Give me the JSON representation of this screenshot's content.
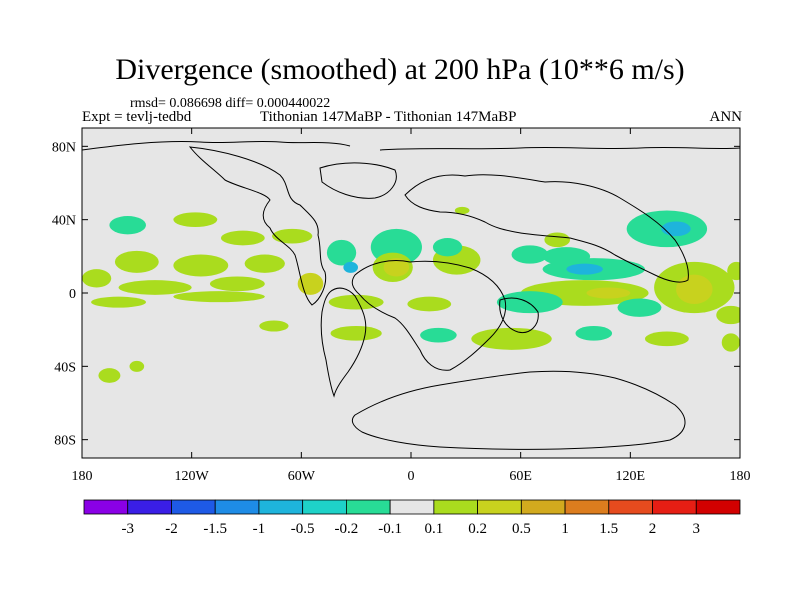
{
  "title": "Divergence (smoothed) at 200 hPa (10**6 m/s)",
  "stats": "rmsd= 0.086698 diff= 0.000440022",
  "expt": "Expt = tevlj-tedbd",
  "period": "Tithonian 147MaBP - Tithonian 147MaBP",
  "season": "ANN",
  "axes": {
    "lon_ticks": [
      "180",
      "120W",
      "60W",
      "0",
      "60E",
      "120E",
      "180"
    ],
    "lat_ticks": [
      "80N",
      "40N",
      "0",
      "40S",
      "80S"
    ],
    "lon_values": [
      -180,
      -120,
      -60,
      0,
      60,
      120,
      180
    ],
    "lat_values": [
      80,
      40,
      0,
      -40,
      -80
    ]
  },
  "colorbar": {
    "labels": [
      "-3",
      "-2",
      "-1.5",
      "-1",
      "-0.5",
      "-0.2",
      "-0.1",
      "0.1",
      "0.2",
      "0.5",
      "1",
      "1.5",
      "2",
      "3"
    ],
    "colors": [
      "#8a00e6",
      "#3a1ee6",
      "#1e5ae6",
      "#1e8ce6",
      "#1eb4dc",
      "#1ed2c8",
      "#28dc96",
      "#e6e6e6",
      "#aadc1e",
      "#c8d21e",
      "#d2aa1e",
      "#dc7d1e",
      "#e64b1e",
      "#e61e14",
      "#d20000"
    ]
  },
  "chart_data": {
    "type": "map-contour",
    "variable": "Divergence (smoothed) at 200 hPa",
    "units": "10**6 m/s",
    "lon_range": [
      -180,
      180
    ],
    "lat_range": [
      -90,
      90
    ],
    "levels": [
      -3,
      -2,
      -1.5,
      -1,
      -0.5,
      -0.2,
      -0.1,
      0.1,
      0.2,
      0.5,
      1,
      1.5,
      2,
      3
    ],
    "background_level_range": [
      -0.1,
      0.1
    ],
    "blobs": [
      {
        "lon": -155,
        "lat": 37,
        "rx": 10,
        "ry": 5,
        "level": "-0.2..-0.1",
        "color": "#28dc96"
      },
      {
        "lon": -118,
        "lat": 40,
        "rx": 12,
        "ry": 4,
        "level": "0.1..0.2",
        "color": "#aadc1e"
      },
      {
        "lon": -92,
        "lat": 30,
        "rx": 12,
        "ry": 4,
        "level": "0.1..0.2",
        "color": "#aadc1e"
      },
      {
        "lon": -65,
        "lat": 31,
        "rx": 11,
        "ry": 4,
        "level": "0.1..0.2",
        "color": "#aadc1e"
      },
      {
        "lon": -150,
        "lat": 17,
        "rx": 12,
        "ry": 6,
        "level": "0.1..0.2",
        "color": "#aadc1e"
      },
      {
        "lon": -115,
        "lat": 15,
        "rx": 15,
        "ry": 6,
        "level": "0.1..0.2",
        "color": "#aadc1e"
      },
      {
        "lon": -80,
        "lat": 16,
        "rx": 11,
        "ry": 5,
        "level": "0.1..0.2",
        "color": "#aadc1e"
      },
      {
        "lon": -172,
        "lat": 8,
        "rx": 8,
        "ry": 5,
        "level": "0.1..0.2",
        "color": "#aadc1e"
      },
      {
        "lon": -140,
        "lat": 3,
        "rx": 20,
        "ry": 4,
        "level": "0.1..0.2",
        "color": "#aadc1e"
      },
      {
        "lon": -95,
        "lat": 5,
        "rx": 15,
        "ry": 4,
        "level": "0.1..0.2",
        "color": "#aadc1e"
      },
      {
        "lon": -55,
        "lat": 5,
        "rx": 7,
        "ry": 6,
        "level": "0.2..0.5",
        "color": "#c8d21e"
      },
      {
        "lon": -38,
        "lat": 22,
        "rx": 8,
        "ry": 7,
        "level": "-0.2..-0.1",
        "color": "#28dc96"
      },
      {
        "lon": -33,
        "lat": 14,
        "rx": 4,
        "ry": 3,
        "level": "-0.5..-0.2",
        "color": "#1eb4dc"
      },
      {
        "lon": -8,
        "lat": 25,
        "rx": 14,
        "ry": 10,
        "level": "-0.2..-0.1",
        "color": "#28dc96"
      },
      {
        "lon": -10,
        "lat": 14,
        "rx": 11,
        "ry": 8,
        "level": "0.1..0.2",
        "color": "#aadc1e"
      },
      {
        "lon": -8,
        "lat": 14,
        "rx": 7,
        "ry": 5,
        "level": "0.2..0.5",
        "color": "#c8d21e"
      },
      {
        "lon": 25,
        "lat": 18,
        "rx": 13,
        "ry": 8,
        "level": "0.1..0.2",
        "color": "#aadc1e"
      },
      {
        "lon": 20,
        "lat": 25,
        "rx": 8,
        "ry": 5,
        "level": "-0.2..-0.1",
        "color": "#28dc96"
      },
      {
        "lon": 28,
        "lat": 45,
        "rx": 4,
        "ry": 2,
        "level": "0.1..0.2",
        "color": "#aadc1e"
      },
      {
        "lon": 80,
        "lat": 29,
        "rx": 7,
        "ry": 4,
        "level": "0.1..0.2",
        "color": "#aadc1e"
      },
      {
        "lon": 65,
        "lat": 21,
        "rx": 10,
        "ry": 5,
        "level": "-0.2..-0.1",
        "color": "#28dc96"
      },
      {
        "lon": 85,
        "lat": 20,
        "rx": 13,
        "ry": 5,
        "level": "-0.2..-0.1",
        "color": "#28dc96"
      },
      {
        "lon": 140,
        "lat": 35,
        "rx": 22,
        "ry": 10,
        "level": "-0.2..-0.1",
        "color": "#28dc96"
      },
      {
        "lon": 145,
        "lat": 35,
        "rx": 8,
        "ry": 4,
        "level": "-0.5..-0.2",
        "color": "#1eb4dc"
      },
      {
        "lon": 100,
        "lat": 13,
        "rx": 28,
        "ry": 6,
        "level": "-0.2..-0.1",
        "color": "#28dc96"
      },
      {
        "lon": 95,
        "lat": 13,
        "rx": 10,
        "ry": 3,
        "level": "-0.5..-0.2",
        "color": "#1eb4dc"
      },
      {
        "lon": 95,
        "lat": 0,
        "rx": 35,
        "ry": 7,
        "level": "0.1..0.2",
        "color": "#aadc1e"
      },
      {
        "lon": 108,
        "lat": 0,
        "rx": 12,
        "ry": 3,
        "level": "0.2..0.5",
        "color": "#c8d21e"
      },
      {
        "lon": 155,
        "lat": 3,
        "rx": 22,
        "ry": 14,
        "level": "0.1..0.2",
        "color": "#aadc1e"
      },
      {
        "lon": 155,
        "lat": 2,
        "rx": 10,
        "ry": 8,
        "level": "0.2..0.5",
        "color": "#c8d21e"
      },
      {
        "lon": 178,
        "lat": 12,
        "rx": 5,
        "ry": 5,
        "level": "0.1..0.2",
        "color": "#aadc1e"
      },
      {
        "lon": 65,
        "lat": -5,
        "rx": 18,
        "ry": 6,
        "level": "-0.2..-0.1",
        "color": "#28dc96"
      },
      {
        "lon": 125,
        "lat": -8,
        "rx": 12,
        "ry": 5,
        "level": "-0.2..-0.1",
        "color": "#28dc96"
      },
      {
        "lon": 175,
        "lat": -12,
        "rx": 8,
        "ry": 5,
        "level": "0.1..0.2",
        "color": "#aadc1e"
      },
      {
        "lon": -160,
        "lat": -5,
        "rx": 15,
        "ry": 3,
        "level": "0.1..0.2",
        "color": "#aadc1e"
      },
      {
        "lon": -105,
        "lat": -2,
        "rx": 25,
        "ry": 3,
        "level": "0.1..0.2",
        "color": "#aadc1e"
      },
      {
        "lon": -30,
        "lat": -5,
        "rx": 15,
        "ry": 4,
        "level": "0.1..0.2",
        "color": "#aadc1e"
      },
      {
        "lon": 10,
        "lat": -6,
        "rx": 12,
        "ry": 4,
        "level": "0.1..0.2",
        "color": "#aadc1e"
      },
      {
        "lon": -75,
        "lat": -18,
        "rx": 8,
        "ry": 3,
        "level": "0.1..0.2",
        "color": "#aadc1e"
      },
      {
        "lon": -30,
        "lat": -22,
        "rx": 14,
        "ry": 4,
        "level": "0.1..0.2",
        "color": "#aadc1e"
      },
      {
        "lon": 15,
        "lat": -23,
        "rx": 10,
        "ry": 4,
        "level": "-0.2..-0.1",
        "color": "#28dc96"
      },
      {
        "lon": 55,
        "lat": -25,
        "rx": 22,
        "ry": 6,
        "level": "0.1..0.2",
        "color": "#aadc1e"
      },
      {
        "lon": 100,
        "lat": -22,
        "rx": 10,
        "ry": 4,
        "level": "-0.2..-0.1",
        "color": "#28dc96"
      },
      {
        "lon": 140,
        "lat": -25,
        "rx": 12,
        "ry": 4,
        "level": "0.1..0.2",
        "color": "#aadc1e"
      },
      {
        "lon": 175,
        "lat": -27,
        "rx": 5,
        "ry": 5,
        "level": "0.1..0.2",
        "color": "#aadc1e"
      },
      {
        "lon": -165,
        "lat": -45,
        "rx": 6,
        "ry": 4,
        "level": "0.1..0.2",
        "color": "#aadc1e"
      },
      {
        "lon": -150,
        "lat": -40,
        "rx": 4,
        "ry": 3,
        "level": "0.1..0.2",
        "color": "#aadc1e"
      }
    ]
  }
}
